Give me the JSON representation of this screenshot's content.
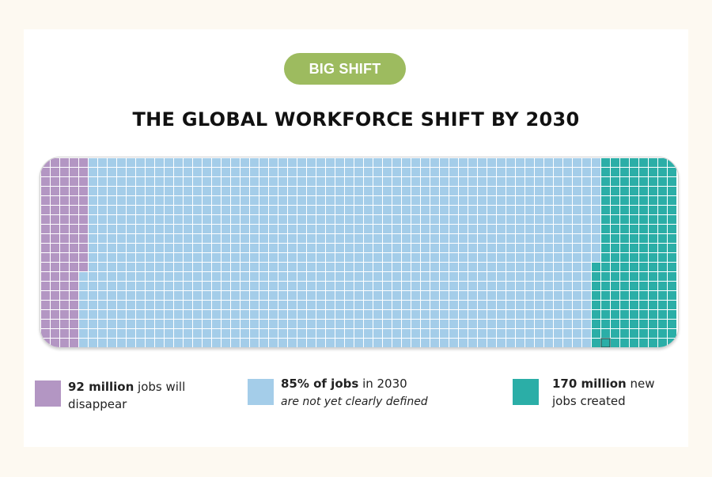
{
  "badge": {
    "label": "BIG SHIFT"
  },
  "title": "THE GLOBAL WORKFORCE SHIFT BY 2030",
  "colors": {
    "disappear": "#b396c3",
    "undefined": "#a4cde9",
    "created": "#2baea7",
    "badge": "#9dbb5f"
  },
  "chart_data": {
    "type": "waffle",
    "title": "THE GLOBAL WORKFORCE SHIFT BY 2030",
    "series": [
      {
        "key": "disappear",
        "bold": "92 million",
        "rest": " jobs will",
        "line2": "disappear"
      },
      {
        "key": "undefined",
        "bold": "85% of jobs",
        "rest": " in 2030",
        "line2": "are not yet clearly defined"
      },
      {
        "key": "created",
        "bold": "170 million",
        "rest": " new",
        "line2": "jobs created"
      }
    ]
  }
}
